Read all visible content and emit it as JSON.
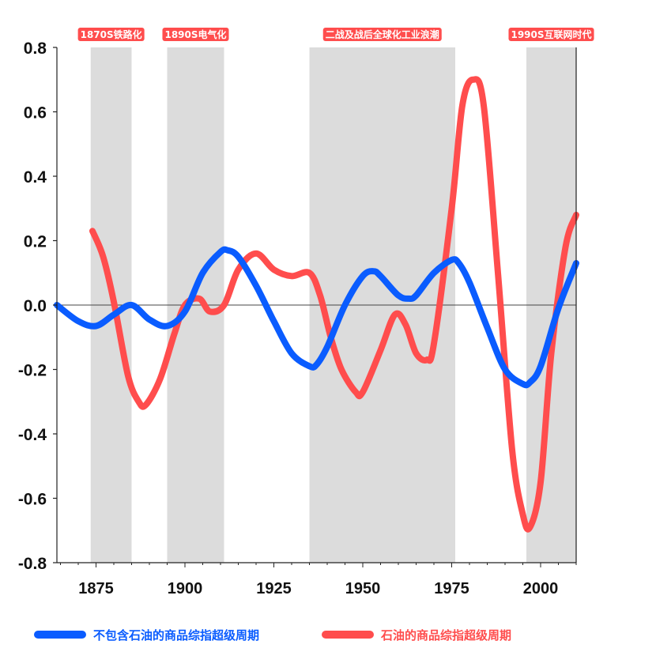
{
  "chart_data": {
    "type": "line",
    "xlim": [
      1864,
      2010
    ],
    "ylim": [
      -0.8,
      0.8
    ],
    "x_ticks": [
      "1875",
      "1900",
      "1925",
      "1950",
      "1975",
      "2000"
    ],
    "y_ticks": [
      "0.8",
      "0.6",
      "0.4",
      "0.2",
      "0.0",
      "-0.2",
      "-0.4",
      "-0.6",
      "-0.8"
    ],
    "grid": false,
    "legend_position": "bottom",
    "shaded_periods": [
      {
        "label": "1870S铁路化",
        "start": 1873.5,
        "end": 1885
      },
      {
        "label": "1890S电气化",
        "start": 1895,
        "end": 1911
      },
      {
        "label": "二战及战后全球化工业浪潮",
        "start": 1935,
        "end": 1976
      },
      {
        "label": "1990S互联网时代",
        "start": 1996,
        "end": 2010
      }
    ],
    "series": [
      {
        "name": "不包含石油的商品综指超级周期",
        "color": "#0a5cff",
        "x": [
          1864,
          1870,
          1875,
          1880,
          1885,
          1890,
          1895,
          1900,
          1905,
          1910,
          1912,
          1915,
          1920,
          1925,
          1930,
          1935,
          1937,
          1940,
          1945,
          1950,
          1953,
          1955,
          1960,
          1963,
          1965,
          1970,
          1975,
          1977,
          1980,
          1985,
          1990,
          1995,
          1997,
          2000,
          2005,
          2010
        ],
        "y": [
          0.0,
          -0.05,
          -0.065,
          -0.03,
          0.0,
          -0.045,
          -0.065,
          -0.02,
          0.1,
          0.165,
          0.17,
          0.15,
          0.06,
          -0.05,
          -0.15,
          -0.19,
          -0.185,
          -0.13,
          0.0,
          0.09,
          0.105,
          0.09,
          0.03,
          0.02,
          0.03,
          0.1,
          0.14,
          0.13,
          0.07,
          -0.07,
          -0.2,
          -0.245,
          -0.24,
          -0.19,
          -0.01,
          0.13
        ]
      },
      {
        "name": "石油的商品综指超级周期",
        "color": "#ff4d4d",
        "x": [
          1874,
          1877,
          1880,
          1884,
          1887,
          1889,
          1893,
          1897,
          1900,
          1904,
          1907,
          1911,
          1915,
          1920,
          1925,
          1930,
          1935,
          1938,
          1941,
          1944,
          1948,
          1950,
          1955,
          1959,
          1962,
          1965,
          1968,
          1970,
          1975,
          1978,
          1981,
          1984,
          1988,
          1992,
          1995,
          1997,
          2000,
          2003,
          2007,
          2010
        ],
        "y": [
          0.23,
          0.15,
          0.01,
          -0.22,
          -0.3,
          -0.31,
          -0.23,
          -0.09,
          0.0,
          0.02,
          -0.02,
          0.0,
          0.11,
          0.16,
          0.11,
          0.09,
          0.1,
          0.03,
          -0.1,
          -0.2,
          -0.27,
          -0.27,
          -0.14,
          -0.03,
          -0.06,
          -0.15,
          -0.17,
          -0.12,
          0.3,
          0.62,
          0.7,
          0.62,
          0.1,
          -0.45,
          -0.65,
          -0.69,
          -0.55,
          -0.15,
          0.18,
          0.28
        ]
      }
    ]
  }
}
